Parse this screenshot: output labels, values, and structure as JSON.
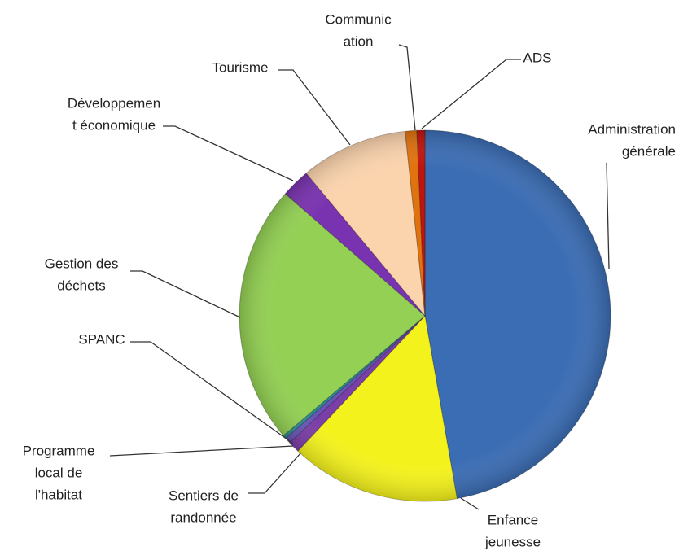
{
  "chart_data": {
    "type": "pie",
    "categories": [
      [
        "Administration",
        "générale"
      ],
      [
        "Enfance",
        "jeunesse"
      ],
      [
        "Sentiers de",
        "randonnée"
      ],
      [
        "Programme",
        "local de",
        "l'habitat"
      ],
      [
        "SPANC"
      ],
      [
        "Gestion des",
        "déchets"
      ],
      [
        "Développemen",
        "t économique"
      ],
      [
        "Tourisme"
      ],
      [
        "Communic",
        "ation"
      ],
      [
        "ADS"
      ]
    ],
    "values": [
      47,
      14.7,
      1,
      0.5,
      0.3,
      22.5,
      2.5,
      9.3,
      1,
      0.7
    ],
    "colors": [
      "#3b6db4",
      "#f4f21c",
      "#7b3da6",
      "#6655b5",
      "#2c8a8e",
      "#93d053",
      "#7a33b0",
      "#fbd3ad",
      "#e0720f",
      "#c0140f"
    ]
  }
}
